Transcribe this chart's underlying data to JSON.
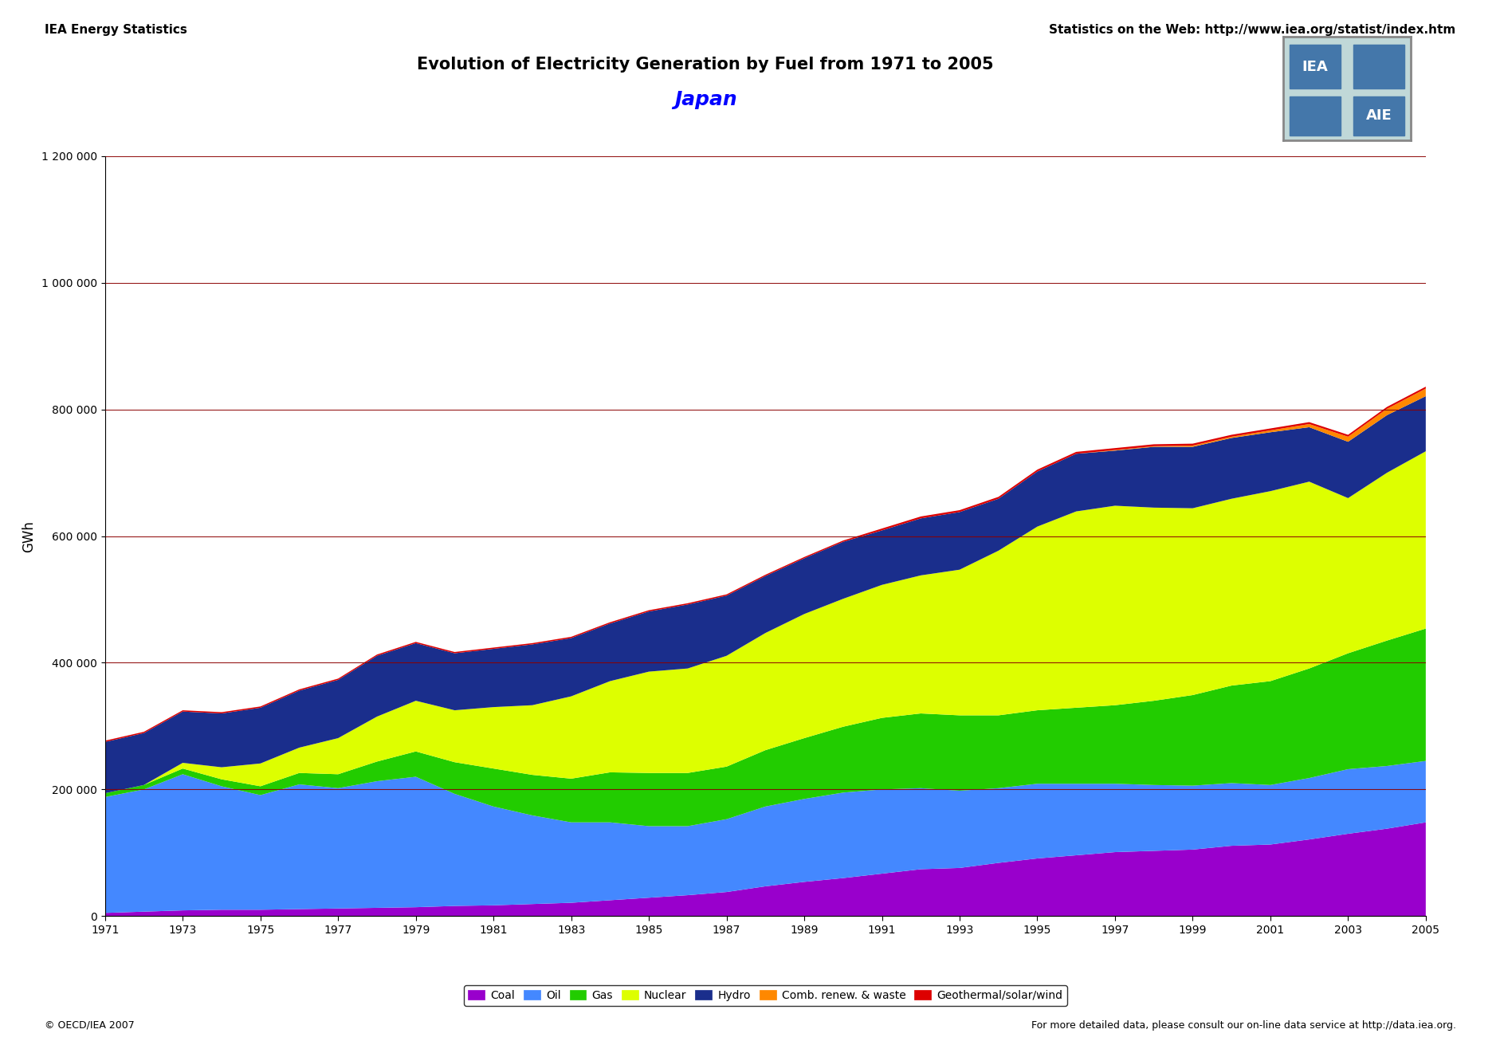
{
  "title": "Evolution of Electricity Generation by Fuel from 1971 to 2005",
  "country": "Japan",
  "ylabel": "GWh",
  "header_left": "IEA Energy Statistics",
  "header_right": "Statistics on the Web: http://www.iea.org/statist/index.htm",
  "footer_left": "© OECD/IEA 2007",
  "footer_right": "For more detailed data, please consult our on-line data service at http://data.iea.org.",
  "years": [
    1971,
    1972,
    1973,
    1974,
    1975,
    1976,
    1977,
    1978,
    1979,
    1980,
    1981,
    1982,
    1983,
    1984,
    1985,
    1986,
    1987,
    1988,
    1989,
    1990,
    1991,
    1992,
    1993,
    1994,
    1995,
    1996,
    1997,
    1998,
    1999,
    2000,
    2001,
    2002,
    2003,
    2004,
    2005
  ],
  "coal": [
    5000,
    7000,
    9000,
    10000,
    10000,
    11000,
    12000,
    13000,
    14000,
    16000,
    17000,
    19000,
    21000,
    25000,
    29000,
    33000,
    38000,
    47000,
    54000,
    60000,
    67000,
    74000,
    76000,
    84000,
    91000,
    96000,
    101000,
    103000,
    105000,
    111000,
    113000,
    121000,
    130000,
    138000,
    148000
  ],
  "oil": [
    183000,
    193000,
    215000,
    195000,
    181000,
    197000,
    190000,
    200000,
    206000,
    177000,
    156000,
    140000,
    127000,
    123000,
    113000,
    109000,
    115000,
    126000,
    131000,
    135000,
    133000,
    128000,
    122000,
    118000,
    118000,
    113000,
    108000,
    104000,
    101000,
    99000,
    94000,
    97000,
    102000,
    99000,
    97000
  ],
  "gas": [
    6000,
    7000,
    9000,
    11000,
    14000,
    18000,
    22000,
    31000,
    40000,
    50000,
    60000,
    64000,
    69000,
    79000,
    84000,
    84000,
    83000,
    89000,
    96000,
    104000,
    113000,
    118000,
    119000,
    115000,
    116000,
    120000,
    124000,
    133000,
    143000,
    154000,
    164000,
    173000,
    183000,
    198000,
    209000
  ],
  "nuclear": [
    0,
    0,
    9000,
    19000,
    36000,
    40000,
    57000,
    71000,
    80000,
    82000,
    97000,
    110000,
    130000,
    144000,
    160000,
    165000,
    175000,
    185000,
    196000,
    202000,
    210000,
    218000,
    230000,
    260000,
    290000,
    310000,
    315000,
    305000,
    295000,
    295000,
    300000,
    295000,
    245000,
    265000,
    280000
  ],
  "hydro": [
    81000,
    82000,
    81000,
    85000,
    88000,
    90000,
    92000,
    96000,
    91000,
    90000,
    92000,
    96000,
    92000,
    91000,
    95000,
    101000,
    95000,
    90000,
    88000,
    90000,
    86000,
    90000,
    91000,
    82000,
    87000,
    91000,
    87000,
    96000,
    97000,
    96000,
    93000,
    86000,
    89000,
    91000,
    87000
  ],
  "comb_renew": [
    0,
    0,
    0,
    0,
    0,
    0,
    0,
    0,
    0,
    0,
    0,
    0,
    0,
    0,
    0,
    0,
    0,
    0,
    0,
    0,
    0,
    0,
    0,
    0,
    0,
    0,
    1000,
    1000,
    2000,
    2000,
    3000,
    5000,
    8000,
    10000,
    12000
  ],
  "geo_solar": [
    2000,
    2000,
    2000,
    2000,
    2000,
    2000,
    2000,
    2000,
    2000,
    2000,
    2000,
    2000,
    2000,
    2000,
    2000,
    2000,
    2000,
    2000,
    2000,
    2000,
    3000,
    3000,
    3000,
    3000,
    3000,
    3000,
    3000,
    3000,
    3000,
    3000,
    3000,
    3000,
    3000,
    3000,
    3000
  ],
  "colors": {
    "coal": "#9900CC",
    "oil": "#4488FF",
    "gas": "#22CC00",
    "nuclear": "#DDFF00",
    "hydro": "#1A2E8C",
    "comb_renew": "#FF8800",
    "geo_solar": "#DD0000"
  },
  "ylim": [
    0,
    1200000
  ],
  "yticks": [
    0,
    200000,
    400000,
    600000,
    800000,
    1000000,
    1200000
  ]
}
